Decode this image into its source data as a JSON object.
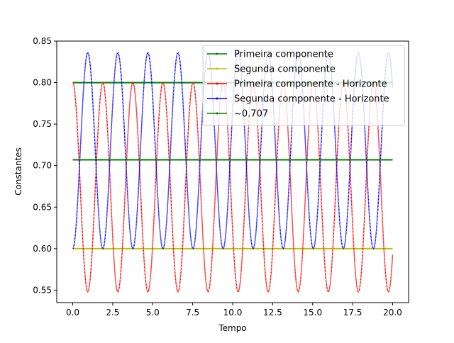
{
  "chart_data": {
    "type": "line",
    "title": "",
    "xlabel": "Tempo",
    "ylabel": "Constantes",
    "xlim": [
      -1.0,
      21.0
    ],
    "ylim": [
      0.535,
      0.85
    ],
    "x_ticks": [
      0.0,
      2.5,
      5.0,
      7.5,
      10.0,
      12.5,
      15.0,
      17.5,
      20.0
    ],
    "x_tick_labels": [
      "0.0",
      "2.5",
      "5.0",
      "7.5",
      "10.0",
      "12.5",
      "15.0",
      "17.5",
      "20.0"
    ],
    "y_ticks": [
      0.55,
      0.6,
      0.65,
      0.7,
      0.75,
      0.8,
      0.85
    ],
    "y_tick_labels": [
      "0.55",
      "0.60",
      "0.65",
      "0.70",
      "0.75",
      "0.80",
      "0.85"
    ],
    "grid": false,
    "legend_position": "top-right",
    "series": [
      {
        "name": "Primeira componente",
        "color": "#008000",
        "kind": "constant",
        "value": 0.8,
        "x_range": [
          0,
          20
        ]
      },
      {
        "name": "Segunda componente",
        "color": "#bfbf00",
        "kind": "constant",
        "value": 0.6,
        "x_range": [
          0,
          20
        ]
      },
      {
        "name": "Primeira componente - Horizonte",
        "color": "#ff0000",
        "kind": "oscillation",
        "mean": 0.674,
        "amplitude": 0.126,
        "period": 1.88,
        "start": 0.8,
        "x_range": [
          0,
          20
        ]
      },
      {
        "name": "Segunda componente - Horizonte",
        "color": "#0000ff",
        "kind": "oscillation",
        "mean": 0.718,
        "amplitude": 0.118,
        "period": 1.88,
        "start": 0.6,
        "x_range": [
          0,
          20
        ]
      },
      {
        "name": "~0.707",
        "color": "#008000",
        "kind": "constant",
        "value": 0.707,
        "x_range": [
          0,
          20
        ]
      }
    ]
  }
}
